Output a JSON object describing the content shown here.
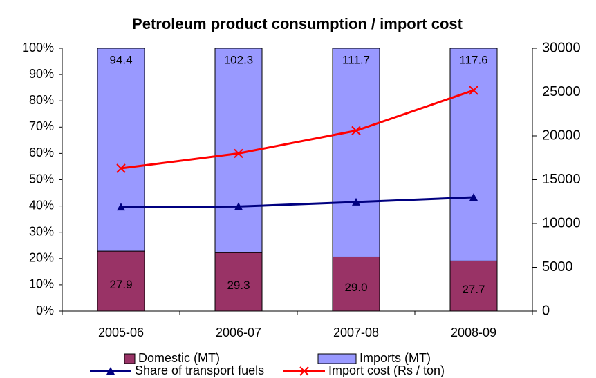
{
  "chart_data": {
    "type": "bar",
    "stacking": "percent",
    "title": "Petroleum product consumption / import cost",
    "categories": [
      "2005-06",
      "2006-07",
      "2007-08",
      "2008-09"
    ],
    "series": [
      {
        "name": "Domestic (MT)",
        "color": "#993366",
        "values": [
          27.9,
          29.3,
          29.0,
          27.7
        ],
        "value_labels": [
          "27.9",
          "29.3",
          "29.0",
          "27.7"
        ]
      },
      {
        "name": "Imports (MT)",
        "color": "#9999ff",
        "values": [
          94.4,
          102.3,
          111.7,
          117.6
        ],
        "value_labels": [
          "94.4",
          "102.3",
          "111.7",
          "117.6"
        ]
      },
      {
        "name": "Share of transport fuels",
        "type": "line",
        "color": "#000080",
        "marker": "triangle",
        "values": [
          39.6,
          39.8,
          41.5,
          43.3
        ]
      },
      {
        "name": "Import cost (Rs / ton)",
        "type": "line",
        "axis": "y2",
        "color": "#ff0000",
        "marker": "x",
        "values": [
          16300,
          18000,
          20600,
          25200
        ]
      }
    ],
    "ylim": [
      0,
      100
    ],
    "yticks": [
      {
        "value": 0,
        "label": "0%"
      },
      {
        "value": 10,
        "label": "10%"
      },
      {
        "value": 20,
        "label": "20%"
      },
      {
        "value": 30,
        "label": "30%"
      },
      {
        "value": 40,
        "label": "40%"
      },
      {
        "value": 50,
        "label": "50%"
      },
      {
        "value": 60,
        "label": "60%"
      },
      {
        "value": 70,
        "label": "70%"
      },
      {
        "value": 80,
        "label": "80%"
      },
      {
        "value": 90,
        "label": "90%"
      },
      {
        "value": 100,
        "label": "100%"
      }
    ],
    "y2lim": [
      0,
      30000
    ],
    "y2ticks": [
      0,
      5000,
      10000,
      15000,
      20000,
      25000,
      30000
    ],
    "grid": false
  }
}
